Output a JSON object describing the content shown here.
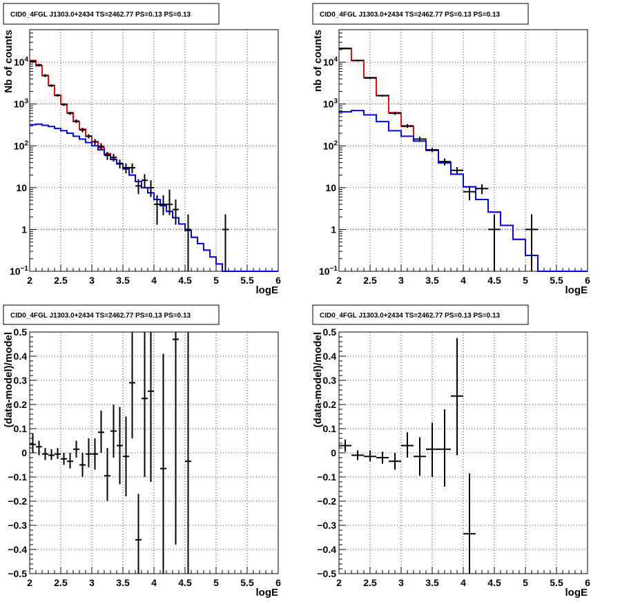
{
  "chart_data": [
    {
      "type": "line",
      "title": "CID0_4FGL J1303.0+2434 TS=2462.77 PS=0.13 PS=0.13",
      "xlabel": "logE",
      "ylabel": "Nb of counts",
      "xlim": [
        2,
        6
      ],
      "ylim": [
        0.1,
        60000
      ],
      "ylog": true,
      "grid": true,
      "xticks": [
        "2",
        "2.5",
        "3",
        "3.5",
        "4",
        "4.5",
        "5",
        "5.5",
        "6"
      ],
      "yticks": [
        {
          "v": 0.1,
          "label": "10",
          "exp": "−1"
        },
        {
          "v": 1,
          "label": "1",
          "exp": ""
        },
        {
          "v": 10,
          "label": "10",
          "exp": ""
        },
        {
          "v": 100,
          "label": "10",
          "exp": "2"
        },
        {
          "v": 1000,
          "label": "10",
          "exp": "3"
        },
        {
          "v": 10000,
          "label": "10",
          "exp": "4"
        }
      ],
      "bin_edges": [
        2.0,
        2.1,
        2.2,
        2.3,
        2.4,
        2.5,
        2.6,
        2.7,
        2.8,
        2.9,
        3.0,
        3.1,
        3.2,
        3.3,
        3.4,
        3.5,
        3.6,
        3.7,
        3.8,
        3.9,
        4.0,
        4.1,
        4.2,
        4.3,
        4.4,
        4.5,
        4.6,
        4.7,
        4.8,
        4.9,
        5.0,
        5.1,
        5.2,
        5.3,
        5.4,
        5.5,
        5.6,
        5.7,
        5.8,
        5.9,
        6.0
      ],
      "series": [
        {
          "color": "#ff0000",
          "style": "step",
          "values": [
            11000,
            8200,
            4800,
            2800,
            1600,
            1000,
            620,
            380,
            250,
            170,
            125,
            90,
            65,
            48,
            37,
            28,
            20,
            14,
            10,
            7.5,
            5.2,
            3.7,
            2.7,
            1.9,
            1.35,
            0.95,
            0.65,
            0.46,
            0.32,
            0.22,
            0.15,
            0.1,
            0.1,
            0.1,
            0.1,
            0.1,
            0.1,
            0.1,
            0.1,
            0.1
          ]
        },
        {
          "color": "#0000ff",
          "style": "step",
          "values": [
            320,
            330,
            310,
            290,
            260,
            230,
            200,
            170,
            145,
            120,
            100,
            80,
            62,
            47,
            37,
            28,
            20,
            14,
            10,
            7.5,
            5.2,
            3.7,
            2.7,
            1.9,
            1.35,
            0.95,
            0.65,
            0.46,
            0.32,
            0.22,
            0.15,
            0.1,
            0.1,
            0.1,
            0.1,
            0.1,
            0.1,
            0.1,
            0.1,
            0.1
          ]
        },
        {
          "color": "#000000",
          "style": "points",
          "points": [
            {
              "x": 2.05,
              "y": 10500,
              "lo": 9800,
              "hi": 11200
            },
            {
              "x": 2.15,
              "y": 8600,
              "lo": 8000,
              "hi": 9200
            },
            {
              "x": 2.25,
              "y": 4800,
              "lo": 4400,
              "hi": 5200
            },
            {
              "x": 2.35,
              "y": 2750,
              "lo": 2550,
              "hi": 2950
            },
            {
              "x": 2.45,
              "y": 1620,
              "lo": 1500,
              "hi": 1740
            },
            {
              "x": 2.55,
              "y": 970,
              "lo": 900,
              "hi": 1040
            },
            {
              "x": 2.65,
              "y": 600,
              "lo": 550,
              "hi": 650
            },
            {
              "x": 2.75,
              "y": 390,
              "lo": 350,
              "hi": 430
            },
            {
              "x": 2.85,
              "y": 240,
              "lo": 210,
              "hi": 270
            },
            {
              "x": 2.95,
              "y": 170,
              "lo": 150,
              "hi": 190
            },
            {
              "x": 3.05,
              "y": 125,
              "lo": 105,
              "hi": 145
            },
            {
              "x": 3.15,
              "y": 98,
              "lo": 80,
              "hi": 116
            },
            {
              "x": 3.25,
              "y": 59,
              "lo": 46,
              "hi": 72
            },
            {
              "x": 3.35,
              "y": 53,
              "lo": 42,
              "hi": 64
            },
            {
              "x": 3.45,
              "y": 38,
              "lo": 29,
              "hi": 47
            },
            {
              "x": 3.55,
              "y": 30,
              "lo": 22,
              "hi": 38
            },
            {
              "x": 3.65,
              "y": 30,
              "lo": 22,
              "hi": 38
            },
            {
              "x": 3.75,
              "y": 11,
              "lo": 7,
              "hi": 16
            },
            {
              "x": 3.85,
              "y": 15,
              "lo": 10,
              "hi": 21
            },
            {
              "x": 3.95,
              "y": 10,
              "lo": 6,
              "hi": 15
            },
            {
              "x": 4.05,
              "y": 4,
              "lo": 1.3,
              "hi": 6.6
            },
            {
              "x": 4.15,
              "y": 4,
              "lo": 2.2,
              "hi": 6.6
            },
            {
              "x": 4.25,
              "y": 4,
              "lo": 2.2,
              "hi": 9
            },
            {
              "x": 4.35,
              "y": 3,
              "lo": 1.3,
              "hi": 5.2
            },
            {
              "x": 4.55,
              "y": 1,
              "lo": 0.1,
              "hi": 2.3
            },
            {
              "x": 5.15,
              "y": 1,
              "lo": 0.1,
              "hi": 2.3
            }
          ]
        }
      ]
    },
    {
      "type": "line",
      "title": "CID0_4FGL J1303.0+2434 TS=2462.77 PS=0.13 PS=0.13",
      "xlabel": "logE",
      "ylabel": "nb of counts",
      "xlim": [
        2,
        6
      ],
      "ylim": [
        0.1,
        60000
      ],
      "ylog": true,
      "grid": true,
      "xticks": [
        "2",
        "2.5",
        "3",
        "3.5",
        "4",
        "4.5",
        "5",
        "5.5",
        "6"
      ],
      "yticks": [
        {
          "v": 0.1,
          "label": "10",
          "exp": "−1"
        },
        {
          "v": 1,
          "label": "1",
          "exp": ""
        },
        {
          "v": 10,
          "label": "10",
          "exp": ""
        },
        {
          "v": 100,
          "label": "10",
          "exp": "2"
        },
        {
          "v": 1000,
          "label": "10",
          "exp": "3"
        },
        {
          "v": 10000,
          "label": "10",
          "exp": "4"
        }
      ],
      "bin_edges": [
        2.0,
        2.2,
        2.4,
        2.6,
        2.8,
        3.0,
        3.2,
        3.4,
        3.6,
        3.8,
        4.0,
        4.2,
        4.4,
        4.6,
        4.8,
        5.0,
        5.2,
        5.4,
        5.6,
        5.8,
        6.0
      ],
      "series": [
        {
          "color": "#ff0000",
          "style": "step",
          "values": [
            21000,
            11000,
            4300,
            1600,
            620,
            290,
            145,
            80,
            40,
            21,
            10.5,
            5.2,
            2.6,
            1.25,
            0.58,
            0.24,
            0.1,
            0.1,
            0.1,
            0.1
          ]
        },
        {
          "color": "#0000ff",
          "style": "step",
          "values": [
            650,
            700,
            550,
            380,
            230,
            170,
            130,
            78,
            39,
            21,
            10.5,
            5.2,
            2.6,
            1.25,
            0.58,
            0.24,
            0.1,
            0.1,
            0.1,
            0.1
          ]
        },
        {
          "color": "#000000",
          "style": "points",
          "points": [
            {
              "x": 2.1,
              "y": 21500,
              "lo": 20500,
              "hi": 22500
            },
            {
              "x": 2.3,
              "y": 11000,
              "lo": 10500,
              "hi": 11500
            },
            {
              "x": 2.5,
              "y": 4200,
              "lo": 3950,
              "hi": 4450
            },
            {
              "x": 2.7,
              "y": 1580,
              "lo": 1500,
              "hi": 1660
            },
            {
              "x": 2.9,
              "y": 600,
              "lo": 550,
              "hi": 650
            },
            {
              "x": 3.1,
              "y": 300,
              "lo": 270,
              "hi": 330
            },
            {
              "x": 3.3,
              "y": 145,
              "lo": 125,
              "hi": 165
            },
            {
              "x": 3.5,
              "y": 80,
              "lo": 70,
              "hi": 90
            },
            {
              "x": 3.7,
              "y": 42,
              "lo": 34,
              "hi": 50
            },
            {
              "x": 3.9,
              "y": 26,
              "lo": 21,
              "hi": 31
            },
            {
              "x": 4.1,
              "y": 8,
              "lo": 5,
              "hi": 11
            },
            {
              "x": 4.3,
              "y": 9.5,
              "lo": 7,
              "hi": 12
            },
            {
              "x": 4.5,
              "y": 1,
              "lo": 0.1,
              "hi": 2.3
            },
            {
              "x": 5.1,
              "y": 1,
              "lo": 0.1,
              "hi": 2.3
            }
          ]
        }
      ]
    },
    {
      "type": "scatter",
      "title": "CID0_4FGL J1303.0+2434 TS=2462.77 PS=0.13 PS=0.13",
      "xlabel": "logE",
      "ylabel": "(data-model)/model",
      "xlim": [
        2,
        6
      ],
      "ylim": [
        -0.5,
        0.5
      ],
      "ylog": false,
      "grid": true,
      "xticks": [
        "2",
        "2.5",
        "3",
        "3.5",
        "4",
        "4.5",
        "5",
        "5.5",
        "6"
      ],
      "yticks": [
        {
          "v": -0.5,
          "label": "−0.5",
          "exp": ""
        },
        {
          "v": -0.4,
          "label": "−0.4",
          "exp": ""
        },
        {
          "v": -0.3,
          "label": "−0.3",
          "exp": ""
        },
        {
          "v": -0.2,
          "label": "−0.2",
          "exp": ""
        },
        {
          "v": -0.1,
          "label": "−0.1",
          "exp": ""
        },
        {
          "v": 0,
          "label": "0",
          "exp": ""
        },
        {
          "v": 0.1,
          "label": "0.1",
          "exp": ""
        },
        {
          "v": 0.2,
          "label": "0.2",
          "exp": ""
        },
        {
          "v": 0.3,
          "label": "0.3",
          "exp": ""
        },
        {
          "v": 0.4,
          "label": "0.4",
          "exp": ""
        },
        {
          "v": 0.5,
          "label": "0.5",
          "exp": ""
        }
      ],
      "xhalf": 0.05,
      "series": [
        {
          "color": "#000000",
          "style": "points",
          "points": [
            {
              "x": 2.05,
              "y": 0.035,
              "lo": 0.0,
              "hi": 0.08
            },
            {
              "x": 2.15,
              "y": 0.025,
              "lo": -0.01,
              "hi": 0.05
            },
            {
              "x": 2.25,
              "y": -0.005,
              "lo": -0.03,
              "hi": 0.02
            },
            {
              "x": 2.35,
              "y": -0.01,
              "lo": -0.03,
              "hi": 0.015
            },
            {
              "x": 2.45,
              "y": -0.005,
              "lo": -0.025,
              "hi": 0.02
            },
            {
              "x": 2.55,
              "y": -0.025,
              "lo": -0.05,
              "hi": 0.0
            },
            {
              "x": 2.65,
              "y": -0.035,
              "lo": -0.065,
              "hi": 0.0
            },
            {
              "x": 2.75,
              "y": 0.015,
              "lo": -0.02,
              "hi": 0.05
            },
            {
              "x": 2.85,
              "y": -0.05,
              "lo": -0.1,
              "hi": 0.0
            },
            {
              "x": 2.95,
              "y": -0.005,
              "lo": -0.06,
              "hi": 0.06
            },
            {
              "x": 3.05,
              "y": -0.005,
              "lo": -0.07,
              "hi": 0.06
            },
            {
              "x": 3.15,
              "y": 0.085,
              "lo": 0.0,
              "hi": 0.175
            },
            {
              "x": 3.25,
              "y": -0.095,
              "lo": -0.2,
              "hi": 0.02
            },
            {
              "x": 3.35,
              "y": 0.09,
              "lo": -0.02,
              "hi": 0.2
            },
            {
              "x": 3.45,
              "y": 0.03,
              "lo": -0.13,
              "hi": 0.19
            },
            {
              "x": 3.55,
              "y": -0.015,
              "lo": -0.18,
              "hi": 0.15
            },
            {
              "x": 3.65,
              "y": 0.29,
              "lo": 0.06,
              "hi": 0.5
            },
            {
              "x": 3.75,
              "y": -0.36,
              "lo": -0.5,
              "hi": -0.17
            },
            {
              "x": 3.85,
              "y": 0.225,
              "lo": -0.1,
              "hi": 0.5
            },
            {
              "x": 3.95,
              "y": 0.255,
              "lo": -0.12,
              "hi": 0.5
            },
            {
              "x": 4.15,
              "y": -0.065,
              "lo": -0.5,
              "hi": 0.41
            },
            {
              "x": 4.35,
              "y": 0.47,
              "lo": -0.38,
              "hi": 0.5
            },
            {
              "x": 4.55,
              "y": -0.035,
              "lo": -0.5,
              "hi": 0.5
            }
          ]
        }
      ]
    },
    {
      "type": "scatter",
      "title": "CID0_4FGL J1303.0+2434 TS=2462.77 PS=0.13 PS=0.13",
      "xlabel": "logE",
      "ylabel": "(data-model)/model",
      "xlim": [
        2,
        6
      ],
      "ylim": [
        -0.5,
        0.5
      ],
      "ylog": false,
      "grid": true,
      "xticks": [
        "2",
        "2.5",
        "3",
        "3.5",
        "4",
        "4.5",
        "5",
        "5.5",
        "6"
      ],
      "yticks": [
        {
          "v": -0.5,
          "label": "−0.5",
          "exp": ""
        },
        {
          "v": -0.4,
          "label": "−0.4",
          "exp": ""
        },
        {
          "v": -0.3,
          "label": "−0.3",
          "exp": ""
        },
        {
          "v": -0.2,
          "label": "−0.2",
          "exp": ""
        },
        {
          "v": -0.1,
          "label": "−0.1",
          "exp": ""
        },
        {
          "v": 0,
          "label": "0",
          "exp": ""
        },
        {
          "v": 0.1,
          "label": "0.1",
          "exp": ""
        },
        {
          "v": 0.2,
          "label": "0.2",
          "exp": ""
        },
        {
          "v": 0.3,
          "label": "0.3",
          "exp": ""
        },
        {
          "v": 0.4,
          "label": "0.4",
          "exp": ""
        },
        {
          "v": 0.5,
          "label": "0.5",
          "exp": ""
        }
      ],
      "xhalf": 0.1,
      "series": [
        {
          "color": "#000000",
          "style": "points",
          "points": [
            {
              "x": 2.1,
              "y": 0.03,
              "lo": 0.005,
              "hi": 0.055
            },
            {
              "x": 2.3,
              "y": -0.01,
              "lo": -0.03,
              "hi": 0.01
            },
            {
              "x": 2.5,
              "y": -0.015,
              "lo": -0.035,
              "hi": 0.01
            },
            {
              "x": 2.7,
              "y": -0.02,
              "lo": -0.045,
              "hi": 0.005
            },
            {
              "x": 2.9,
              "y": -0.035,
              "lo": -0.07,
              "hi": 0.0
            },
            {
              "x": 3.1,
              "y": 0.03,
              "lo": -0.02,
              "hi": 0.085
            },
            {
              "x": 3.3,
              "y": -0.015,
              "lo": -0.095,
              "hi": 0.065
            },
            {
              "x": 3.5,
              "y": 0.015,
              "lo": -0.1,
              "hi": 0.125
            },
            {
              "x": 3.7,
              "y": 0.015,
              "lo": -0.14,
              "hi": 0.18
            },
            {
              "x": 3.9,
              "y": 0.235,
              "lo": -0.01,
              "hi": 0.475
            },
            {
              "x": 4.1,
              "y": -0.335,
              "lo": -0.5,
              "hi": -0.085
            }
          ]
        }
      ]
    }
  ]
}
